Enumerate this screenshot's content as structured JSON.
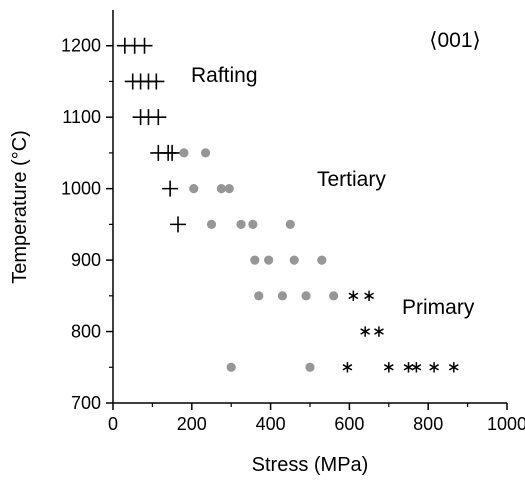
{
  "chart_data": {
    "type": "scatter",
    "title": "",
    "xlabel": "Stress (MPa)",
    "ylabel": "Temperature (°C)",
    "xlim": [
      0,
      1000
    ],
    "ylim": [
      700,
      1250
    ],
    "xticks": [
      "0",
      "200",
      "400",
      "600",
      "800",
      "1000"
    ],
    "yticks": [
      "700",
      "800",
      "900",
      "1000",
      "1100",
      "1200"
    ],
    "grid": false,
    "legend": "none",
    "annotations": {
      "orientation": "⟨001⟩",
      "rafting": "Rafting",
      "tertiary": "Tertiary",
      "primary": "Primary"
    },
    "series": [
      {
        "marker": "plus",
        "color": "#000000",
        "points": [
          [
            30,
            1200
          ],
          [
            55,
            1200
          ],
          [
            80,
            1200
          ],
          [
            50,
            1150
          ],
          [
            70,
            1150
          ],
          [
            90,
            1150
          ],
          [
            110,
            1150
          ],
          [
            70,
            1100
          ],
          [
            90,
            1100
          ],
          [
            115,
            1100
          ],
          [
            115,
            1050
          ],
          [
            140,
            1050
          ],
          [
            150,
            1050
          ],
          [
            145,
            1000
          ],
          [
            165,
            950
          ]
        ]
      },
      {
        "marker": "dot",
        "color": "#969696",
        "points": [
          [
            180,
            1050
          ],
          [
            235,
            1050
          ],
          [
            205,
            1000
          ],
          [
            275,
            1000
          ],
          [
            295,
            1000
          ],
          [
            250,
            950
          ],
          [
            325,
            950
          ],
          [
            355,
            950
          ],
          [
            450,
            950
          ],
          [
            360,
            900
          ],
          [
            395,
            900
          ],
          [
            460,
            900
          ],
          [
            530,
            900
          ],
          [
            370,
            850
          ],
          [
            430,
            850
          ],
          [
            490,
            850
          ],
          [
            560,
            850
          ],
          [
            300,
            750
          ],
          [
            500,
            750
          ]
        ]
      },
      {
        "marker": "star",
        "color": "#000000",
        "points": [
          [
            610,
            850
          ],
          [
            650,
            850
          ],
          [
            640,
            800
          ],
          [
            675,
            800
          ],
          [
            595,
            750
          ],
          [
            700,
            750
          ],
          [
            750,
            750
          ],
          [
            770,
            750
          ],
          [
            815,
            750
          ],
          [
            865,
            750
          ]
        ]
      }
    ]
  }
}
